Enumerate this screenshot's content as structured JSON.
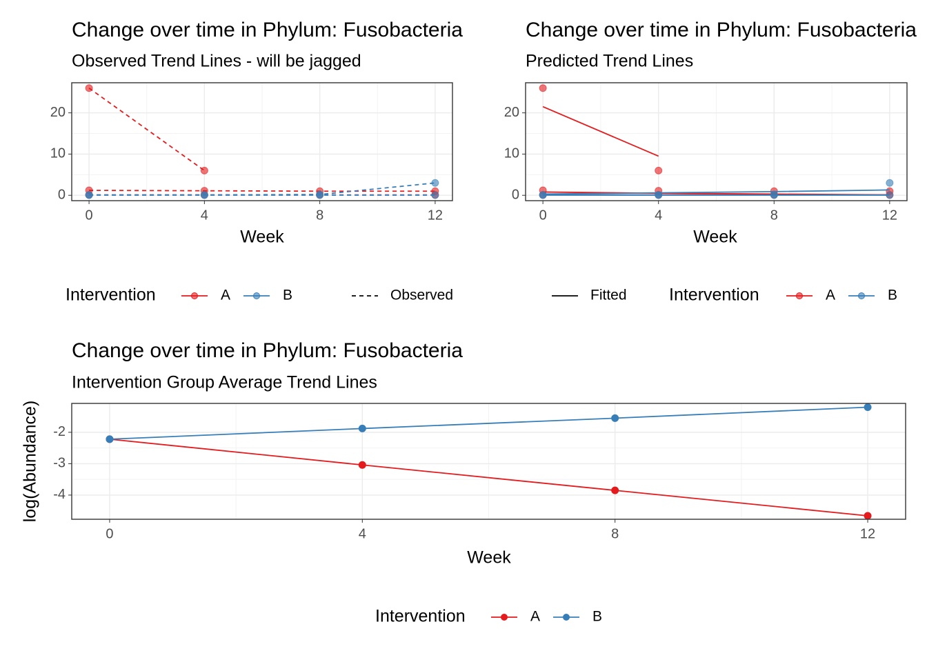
{
  "chart_data": [
    {
      "type": "line",
      "title": "Change over time in Phylum: Fusobacteria",
      "subtitle": "Observed Trend Lines - will be jagged",
      "x_label": "Week",
      "x": [
        0,
        4,
        8,
        12
      ],
      "xlim": [
        -0.6,
        12.6
      ],
      "xticks": [
        0,
        4,
        8,
        12
      ],
      "ylim": [
        -1.3,
        27.3
      ],
      "yticks": [
        0,
        10,
        20
      ],
      "grid": true,
      "legend_title": "Intervention",
      "linetype_key": "Observed",
      "linetype": "dashed",
      "series": [
        {
          "name": "A",
          "color": "#e41a1c",
          "observed": [
            [
              26,
              6,
              null,
              null
            ],
            [
              1.2,
              1.1,
              1.0,
              1.0
            ],
            [
              0.1,
              0.1,
              0.1,
              0.1
            ]
          ]
        },
        {
          "name": "B",
          "color": "#377eb8",
          "observed": [
            [
              0.1,
              0.1,
              0.2,
              3.0
            ],
            [
              0.05,
              0.05,
              0.05,
              0.05
            ]
          ]
        }
      ]
    },
    {
      "type": "line",
      "title": "Change over time in Phylum: Fusobacteria",
      "subtitle": "Predicted Trend Lines",
      "x_label": "Week",
      "x": [
        0,
        4,
        8,
        12
      ],
      "xlim": [
        -0.6,
        12.6
      ],
      "xticks": [
        0,
        4,
        8,
        12
      ],
      "ylim": [
        -1.3,
        27.3
      ],
      "yticks": [
        0,
        10,
        20
      ],
      "grid": true,
      "legend_title": "Intervention",
      "linetype_key": "Fitted",
      "linetype": "solid",
      "series": [
        {
          "name": "A",
          "color": "#e41a1c",
          "observed": [
            [
              26,
              6,
              null,
              null
            ],
            [
              1.2,
              1.1,
              1.0,
              1.0
            ],
            [
              0.1,
              0.1,
              0.1,
              0.1
            ]
          ],
          "fitted": [
            [
              21.5,
              9.5,
              null,
              null
            ],
            [
              0.8,
              0.5,
              0.3,
              0.1
            ],
            [
              0.1,
              0.1,
              0.1,
              0.1
            ]
          ]
        },
        {
          "name": "B",
          "color": "#377eb8",
          "observed": [
            [
              0.1,
              0.1,
              0.2,
              3.0
            ],
            [
              0.05,
              0.05,
              0.05,
              0.05
            ]
          ],
          "fitted": [
            [
              0.3,
              0.6,
              0.9,
              1.3
            ],
            [
              0.05,
              0.05,
              0.05,
              0.05
            ]
          ]
        }
      ]
    },
    {
      "type": "line",
      "title": "Change over time in Phylum: Fusobacteria",
      "subtitle": "Intervention Group Average Trend Lines",
      "x_label": "Week",
      "y_label": "log(Abundance)",
      "x": [
        0,
        4,
        8,
        12
      ],
      "xlim": [
        -0.6,
        12.6
      ],
      "xticks": [
        0,
        4,
        8,
        12
      ],
      "ylim": [
        -4.77,
        -1.08
      ],
      "yticks": [
        -2,
        -3,
        -4
      ],
      "grid": true,
      "legend_title": "Intervention",
      "series": [
        {
          "name": "A",
          "color": "#e41a1c",
          "values": [
            -2.22,
            -3.04,
            -3.85,
            -4.66
          ]
        },
        {
          "name": "B",
          "color": "#377eb8",
          "values": [
            -2.22,
            -1.88,
            -1.55,
            -1.2
          ]
        }
      ]
    }
  ]
}
